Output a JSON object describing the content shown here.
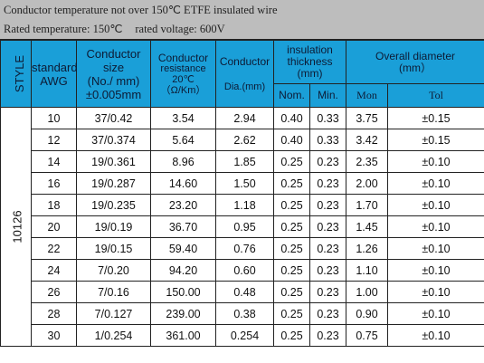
{
  "header": {
    "line1": "Conductor temperature not over 150℃ ETFE insulated wire",
    "rated_temperature": "Rated temperature: 150℃",
    "rated_voltage": "rated voltage: 600V"
  },
  "columns": {
    "style": "STYLE",
    "standard": [
      "standard",
      "AWG"
    ],
    "conductor_size": [
      "Conductor",
      "size",
      "(No./ mm)",
      "±0.005mm"
    ],
    "conductor_resistance": [
      "Conductor",
      "resistance",
      "20℃",
      "（Ω/Km）"
    ],
    "conductor": [
      "Conductor",
      "Dia.(mm)"
    ],
    "insulation": [
      "insulation",
      "thickness",
      "(mm)"
    ],
    "insulation_nom": "Nom.",
    "insulation_min": "Min.",
    "overall": [
      "Overall diameter",
      "(mm）"
    ],
    "overall_mon": "Mon",
    "overall_tol": "Tol"
  },
  "style_value": "10126",
  "rows": [
    [
      "10",
      "37/0.42",
      "3.54",
      "2.94",
      "0.40",
      "0.33",
      "3.75",
      "±0.15"
    ],
    [
      "12",
      "37/0.374",
      "5.64",
      "2.62",
      "0.40",
      "0.33",
      "3.42",
      "±0.15"
    ],
    [
      "14",
      "19/0.361",
      "8.96",
      "1.85",
      "0.25",
      "0.23",
      "2.35",
      "±0.10"
    ],
    [
      "16",
      "19/0.287",
      "14.60",
      "1.50",
      "0.25",
      "0.23",
      "2.00",
      "±0.10"
    ],
    [
      "18",
      "19/0.235",
      "23.20",
      "1.18",
      "0.25",
      "0.23",
      "1.70",
      "±0.10"
    ],
    [
      "20",
      "19/0.19",
      "36.70",
      "0.95",
      "0.25",
      "0.23",
      "1.45",
      "±0.10"
    ],
    [
      "22",
      "19/0.15",
      "59.40",
      "0.76",
      "0.25",
      "0.23",
      "1.26",
      "±0.10"
    ],
    [
      "24",
      "7/0.20",
      "94.20",
      "0.60",
      "0.25",
      "0.23",
      "1.10",
      "±0.10"
    ],
    [
      "26",
      "7/0.16",
      "150.00",
      "0.48",
      "0.25",
      "0.23",
      "1.00",
      "±0.10"
    ],
    [
      "28",
      "7/0.127",
      "239.00",
      "0.38",
      "0.25",
      "0.23",
      "0.90",
      "±0.10"
    ],
    [
      "30",
      "1/0.254",
      "361.00",
      "0.254",
      "0.25",
      "0.23",
      "0.75",
      "±0.10"
    ]
  ]
}
